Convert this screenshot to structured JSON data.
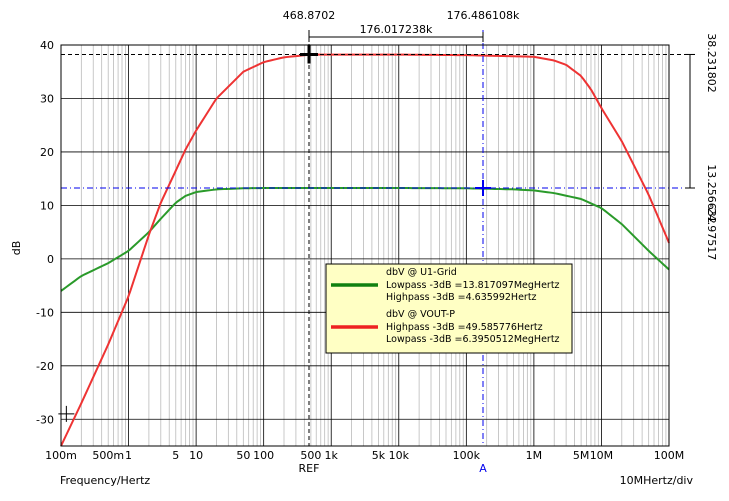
{
  "chart_data": {
    "type": "line",
    "x_scale": "log",
    "y_scale": "linear",
    "xlim": [
      0.1,
      100000000
    ],
    "ylim": [
      -35,
      40
    ],
    "grid": true,
    "ylabel": "dB",
    "xlabel": "Frequency/Hertz",
    "x_div_label": "10MHertz/div",
    "y_ticks": [
      "40",
      "30",
      "20",
      "10",
      "0",
      "-10",
      "-20",
      "-30"
    ],
    "x_ticks": [
      {
        "value": 0.1,
        "label": "100m"
      },
      {
        "value": 0.5,
        "label": "500m"
      },
      {
        "value": 1,
        "label": "1"
      },
      {
        "value": 5,
        "label": "5"
      },
      {
        "value": 10,
        "label": "10"
      },
      {
        "value": 50,
        "label": "50"
      },
      {
        "value": 100,
        "label": "100"
      },
      {
        "value": 500,
        "label": "500"
      },
      {
        "value": 1000,
        "label": "1k"
      },
      {
        "value": 5000,
        "label": "5k"
      },
      {
        "value": 10000,
        "label": "10k"
      },
      {
        "value": 100000,
        "label": "100k"
      },
      {
        "value": 1000000,
        "label": "1M"
      },
      {
        "value": 5000000,
        "label": "5M"
      },
      {
        "value": 10000000,
        "label": "10M"
      },
      {
        "value": 100000000,
        "label": "100M"
      }
    ],
    "series": [
      {
        "name": "dbV @ U1-Grid",
        "color": "#2a9a2a",
        "x": [
          0.1,
          0.2,
          0.5,
          1,
          2,
          3,
          5,
          7,
          10,
          20,
          50,
          100,
          1000,
          10000,
          100000,
          500000,
          1000000,
          2000000,
          5000000,
          10000000,
          20000000,
          50000000,
          100000000
        ],
        "y": [
          -6,
          -3.2,
          -0.8,
          1.5,
          5,
          7.5,
          10.5,
          11.8,
          12.5,
          13.0,
          13.2,
          13.25,
          13.25,
          13.25,
          13.2,
          13.0,
          12.8,
          12.3,
          11.2,
          9.5,
          6.5,
          1.5,
          -2
        ]
      },
      {
        "name": "dbV @ VOUT-P",
        "color": "#ee3333",
        "x": [
          0.1,
          0.2,
          0.5,
          1,
          2,
          3,
          5,
          7,
          10,
          20,
          50,
          100,
          200,
          500,
          10000,
          100000,
          1000000,
          2000000,
          3000000,
          5000000,
          7000000,
          10000000,
          20000000,
          50000000,
          100000000
        ],
        "y": [
          -35,
          -27,
          -16,
          -7,
          4.5,
          10.5,
          16.5,
          20.5,
          24,
          30,
          35,
          36.8,
          37.7,
          38.2,
          38.2,
          38.1,
          37.8,
          37.1,
          36.3,
          34.2,
          31.7,
          28.2,
          22,
          12,
          3
        ]
      }
    ],
    "legend": {
      "placement": "center",
      "entries": [
        {
          "series": "dbV @ U1-Grid",
          "color": "#108010",
          "lines": [
            "Lowpass -3dB =13.817097MegHertz",
            "Highpass -3dB =4.635992Hertz"
          ]
        },
        {
          "series": "dbV @ VOUT-P",
          "color": "#ee2222",
          "lines": [
            "Highpass -3dB =49.585776Hertz",
            "Lowpass -3dB =6.3950512MegHertz"
          ]
        }
      ]
    },
    "cursors": {
      "ref": {
        "label": "REF",
        "x": 468.8702,
        "x_label": "468.8702",
        "y": 38.231802,
        "y_label": "38.231802",
        "color": "#000000"
      },
      "a": {
        "label": "A",
        "x": 176486.108,
        "x_label": "176.486108k",
        "y": 13.256632,
        "y_label": "13.256632",
        "color": "#0000ee"
      },
      "dx_label": "176.017238k",
      "dy_label": "-24.97517"
    },
    "extra_marker": {
      "x": 0.12,
      "y": -29
    }
  }
}
